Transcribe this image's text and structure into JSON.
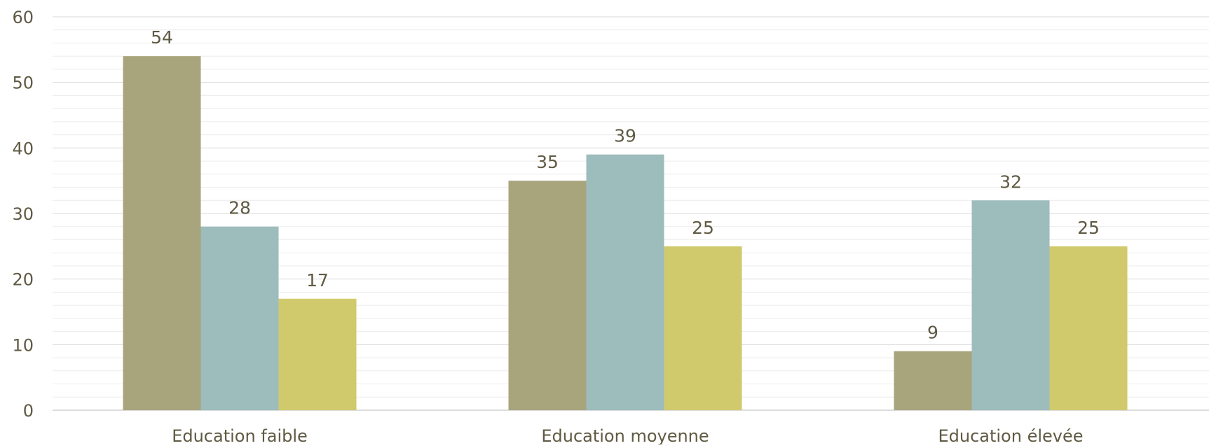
{
  "chart_data": {
    "type": "bar",
    "title": "",
    "xlabel": "",
    "ylabel": "",
    "categories": [
      "Education faible",
      "Education moyenne",
      "Education élevée"
    ],
    "series": [
      {
        "values": [
          54,
          35,
          9
        ],
        "color": "#a8a47c"
      },
      {
        "values": [
          28,
          39,
          32
        ],
        "color": "#9dbcbc"
      },
      {
        "values": [
          17,
          25,
          25
        ],
        "color": "#d1ca6c"
      }
    ],
    "ylim": [
      0,
      60
    ],
    "yticks": [
      0,
      10,
      20,
      30,
      40,
      50,
      60
    ],
    "minor_grid_step": 2,
    "grid": true,
    "legend": "none",
    "data_labels": true,
    "colors": {
      "text": "#5f5a43",
      "grid_major": "#d9d9d9",
      "grid_minor": "#ececec",
      "axis": "#d0d0d0"
    }
  }
}
